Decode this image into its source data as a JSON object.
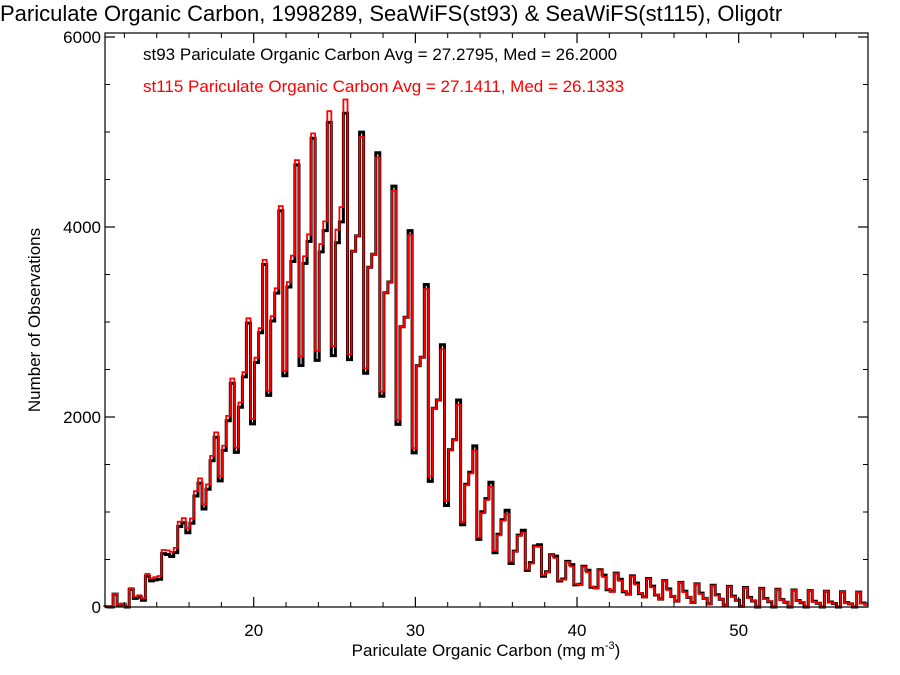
{
  "chart_data": {
    "type": "histogram-step",
    "title": "Pariculate Organic Carbon, 1998289, SeaWiFS(st93) & SeaWiFS(st115), Oligotr",
    "xlabel_main": "Pariculate Organic Carbon (mg m",
    "xlabel_sup": "-3",
    "xlabel_end": ")",
    "ylabel": "Number of Observations",
    "xlim": [
      10.8,
      58.0
    ],
    "ylim": [
      0,
      6000
    ],
    "xticks": [
      20,
      30,
      40,
      50
    ],
    "xtick_labels": [
      "20",
      "30",
      "40",
      "50"
    ],
    "yticks": [
      0,
      2000,
      4000,
      6000
    ],
    "ytick_labels": [
      "0",
      "2000",
      "4000",
      "6000"
    ],
    "bin_width": 0.25,
    "legend": [
      {
        "text": "st93 Pariculate Organic Carbon Avg = 27.2795, Med = 26.2000",
        "color": "#000000"
      },
      {
        "text": "st115 Pariculate Organic Carbon Avg = 27.1411, Med = 26.1333",
        "color": "#ff0000"
      }
    ],
    "series": [
      {
        "name": "st93",
        "color": "#000000",
        "control_x": [
          10.8,
          12.0,
          13.0,
          14.0,
          15.0,
          16.0,
          17.0,
          18.0,
          19.0,
          20.0,
          21.0,
          22.0,
          23.0,
          24.0,
          25.0,
          25.5,
          26.0,
          27.0,
          28.0,
          29.0,
          30.0,
          31.0,
          32.0,
          33.0,
          34.0,
          35.0,
          36.0,
          37.0,
          38.0,
          39.0,
          40.0,
          42.0,
          44.0,
          46.0,
          48.0,
          50.0,
          52.0,
          54.0,
          56.0,
          58.0
        ],
        "control_peak": [
          0,
          30,
          120,
          350,
          650,
          1000,
          1450,
          1950,
          2550,
          3200,
          3800,
          4350,
          4800,
          5000,
          5150,
          5250,
          5100,
          4950,
          4700,
          4300,
          3800,
          3200,
          2550,
          2000,
          1550,
          1200,
          930,
          750,
          610,
          500,
          420,
          320,
          240,
          180,
          140,
          110,
          85,
          65,
          50,
          40
        ],
        "control_trough": [
          0,
          30,
          110,
          300,
          550,
          800,
          1050,
          1350,
          1650,
          1950,
          2250,
          2450,
          2550,
          2600,
          2650,
          2630,
          2600,
          2450,
          2200,
          1900,
          1600,
          1300,
          1050,
          850,
          700,
          560,
          450,
          380,
          320,
          270,
          230,
          180,
          140,
          110,
          90,
          70,
          55,
          45,
          35,
          30
        ]
      },
      {
        "name": "st115",
        "color": "#ff0000",
        "control_x": [
          10.8,
          12.0,
          13.0,
          14.0,
          15.0,
          16.0,
          17.0,
          18.0,
          19.0,
          20.0,
          21.0,
          22.0,
          23.0,
          24.0,
          25.0,
          25.5,
          26.0,
          27.0,
          28.0,
          29.0,
          30.0,
          31.0,
          32.0,
          33.0,
          34.0,
          35.0,
          36.0,
          37.0,
          38.0,
          39.0,
          40.0,
          42.0,
          44.0,
          46.0,
          48.0,
          50.0,
          52.0,
          54.0,
          56.0,
          58.0
        ],
        "control_peak": [
          0,
          35,
          140,
          380,
          700,
          1050,
          1500,
          2000,
          2600,
          3250,
          3850,
          4400,
          4850,
          5050,
          5300,
          5500,
          5050,
          4900,
          4650,
          4250,
          3750,
          3150,
          2500,
          1950,
          1500,
          1150,
          900,
          720,
          590,
          480,
          400,
          300,
          225,
          170,
          130,
          100,
          80,
          60,
          45,
          35
        ],
        "control_trough": [
          0,
          35,
          130,
          330,
          600,
          850,
          1100,
          1400,
          1700,
          2000,
          2300,
          2500,
          2650,
          2700,
          2750,
          2700,
          2650,
          2500,
          2250,
          1950,
          1650,
          1350,
          1100,
          880,
          720,
          580,
          470,
          390,
          330,
          280,
          240,
          190,
          145,
          115,
          92,
          72,
          57,
          46,
          36,
          30
        ]
      }
    ]
  }
}
